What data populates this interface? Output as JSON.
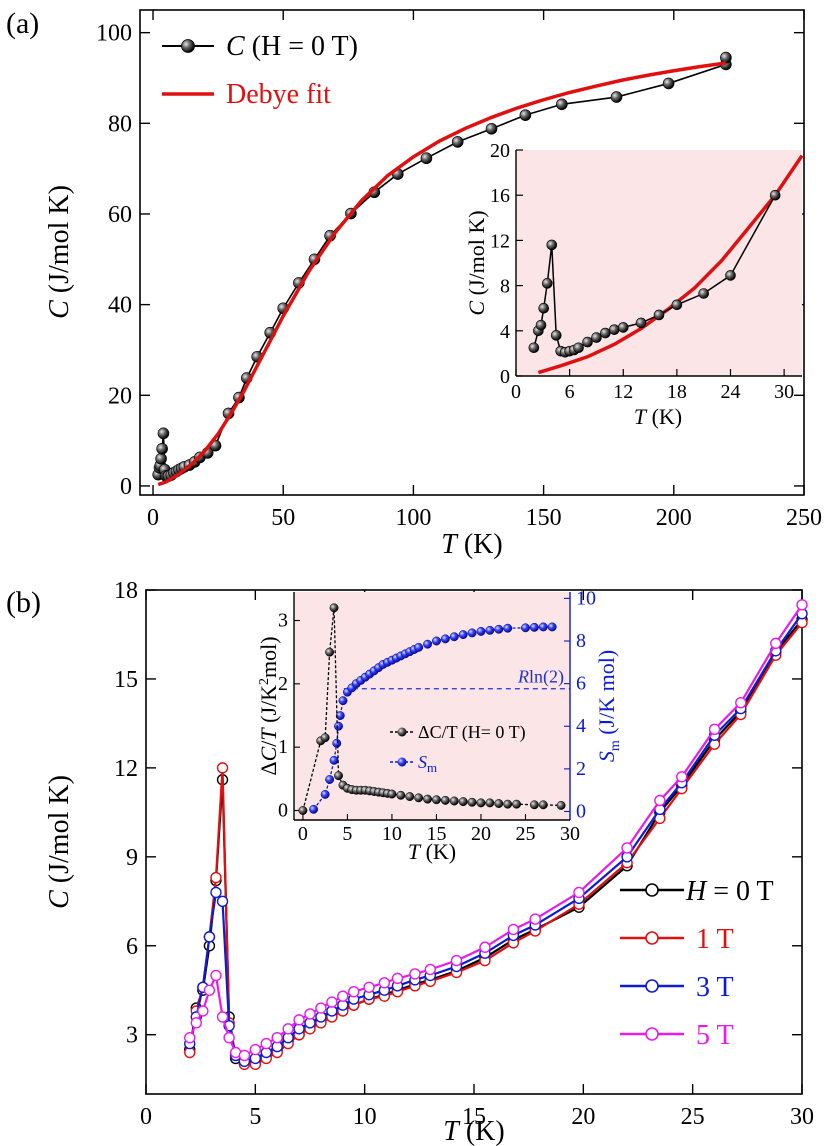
{
  "panels": {
    "a_label": "(a)",
    "b_label": "(b)"
  },
  "colors": {
    "black": "#000000",
    "red": "#e01010",
    "blue": "#0b1bd6",
    "magenta": "#e81be8",
    "inset_bg": "#fbe5e7",
    "dashed": "#2030d0"
  },
  "chart_data": [
    {
      "id": "panel-a-main",
      "type": "scatter",
      "xlabel_italic": "T",
      "xlabel_rest": " (K)",
      "ylabel_italic": "C",
      "ylabel_rest": " (J/mol K)",
      "xlim": [
        -5,
        250
      ],
      "ylim": [
        -2,
        105
      ],
      "xticks": [
        0,
        50,
        100,
        150,
        200,
        250
      ],
      "yticks": [
        0,
        20,
        40,
        60,
        80,
        100
      ],
      "legend_position": "top-left",
      "legend": [
        {
          "label_italic": "C",
          "label_rest": " (H = 0 T)",
          "color": "#000000",
          "style": "line-marker"
        },
        {
          "label_italic": "",
          "label_rest": "Debye fit",
          "color": "#e01010",
          "style": "line"
        }
      ],
      "series": [
        {
          "name": "C (H = 0 T)",
          "color": "#000000",
          "x": [
            2,
            2.5,
            2.8,
            3.1,
            3.5,
            4,
            4.5,
            5,
            5.5,
            6,
            7,
            8,
            9,
            10,
            11,
            12,
            14,
            16,
            18,
            21,
            24,
            29,
            33,
            36,
            40,
            45,
            50,
            56,
            62,
            68,
            76,
            85,
            94,
            105,
            117,
            130,
            143,
            157,
            178,
            198,
            220,
            220
          ],
          "y": [
            2.5,
            4.0,
            4.5,
            6.0,
            8.2,
            11.6,
            3.6,
            2.2,
            2.1,
            2.2,
            2.4,
            2.9,
            3.2,
            3.6,
            3.9,
            4.2,
            4.6,
            5.3,
            6.3,
            7.3,
            8.9,
            16.0,
            19.5,
            23.8,
            28.5,
            33.8,
            39.2,
            44.8,
            50.0,
            55.2,
            60.1,
            64.8,
            68.8,
            72.3,
            75.9,
            78.8,
            81.8,
            84.2,
            85.8,
            88.8,
            93.0,
            94.5
          ]
        },
        {
          "name": "Debye fit",
          "color": "#e01010",
          "x": [
            2,
            5,
            10,
            15,
            20,
            25,
            30,
            35,
            40,
            45,
            50,
            60,
            70,
            80,
            90,
            100,
            110,
            120,
            130,
            140,
            150,
            160,
            170,
            180,
            190,
            200,
            210,
            220
          ],
          "y": [
            0.3,
            0.9,
            2.6,
            4.9,
            7.8,
            11.5,
            16.0,
            21.0,
            26.5,
            32.0,
            37.5,
            47.5,
            55.9,
            62.9,
            68.4,
            72.6,
            76.1,
            78.9,
            81.3,
            83.4,
            85.2,
            86.8,
            88.2,
            89.5,
            90.6,
            91.6,
            92.5,
            93.3
          ]
        }
      ]
    },
    {
      "id": "panel-a-inset",
      "type": "scatter",
      "xlabel_italic": "T",
      "xlabel_rest": " (K)",
      "ylabel_italic": "C",
      "ylabel_rest": " (J/mol K)",
      "xlim": [
        0,
        32
      ],
      "ylim": [
        0,
        20
      ],
      "xticks": [
        0,
        6,
        12,
        18,
        24,
        30
      ],
      "yticks": [
        0,
        4,
        8,
        12,
        16,
        20
      ],
      "series": [
        {
          "name": "C (H = 0 T)",
          "color": "#000000",
          "x": [
            2,
            2.5,
            2.8,
            3.1,
            3.5,
            4,
            4.5,
            5,
            5.5,
            6,
            6.5,
            7,
            8,
            9,
            10,
            11,
            12,
            14,
            16,
            18,
            21,
            24,
            29
          ],
          "y": [
            2.5,
            4.0,
            4.5,
            6.0,
            8.2,
            11.6,
            3.6,
            2.2,
            2.1,
            2.2,
            2.3,
            2.5,
            3.0,
            3.4,
            3.8,
            4.1,
            4.3,
            4.7,
            5.4,
            6.3,
            7.3,
            8.9,
            16.0
          ]
        },
        {
          "name": "Debye fit",
          "color": "#e01010",
          "x": [
            2.5,
            5,
            8,
            11,
            14,
            17,
            20,
            23,
            26,
            29,
            32
          ],
          "y": [
            0.3,
            0.9,
            1.7,
            2.8,
            4.2,
            5.9,
            7.8,
            10.2,
            13.1,
            16.0,
            19.5
          ]
        }
      ]
    },
    {
      "id": "panel-b-main",
      "type": "line",
      "xlabel_italic": "T",
      "xlabel_rest": " (K)",
      "ylabel_italic": "C",
      "ylabel_rest": " (J/mol K)",
      "xlim": [
        0,
        30
      ],
      "ylim": [
        1,
        18
      ],
      "xticks": [
        0,
        5,
        10,
        15,
        20,
        25,
        30
      ],
      "yticks": [
        3,
        6,
        9,
        12,
        15,
        18
      ],
      "legend_position": "right",
      "legend": [
        {
          "label_italic": "H",
          "label_rest": " = 0 T",
          "color": "#000000"
        },
        {
          "label_italic": "",
          "label_rest": "1 T",
          "color": "#e01010"
        },
        {
          "label_italic": "",
          "label_rest": "3 T",
          "color": "#0b1bd6"
        },
        {
          "label_italic": "",
          "label_rest": "5 T",
          "color": "#e81be8"
        }
      ],
      "series": [
        {
          "name": "H = 0 T",
          "color": "#000000",
          "x": [
            2.0,
            2.3,
            2.6,
            2.9,
            3.2,
            3.5,
            3.8,
            4.1,
            4.5,
            5.0,
            5.5,
            6.0,
            6.5,
            7.0,
            7.5,
            8.0,
            8.5,
            9.0,
            9.5,
            10.2,
            10.9,
            11.5,
            12.3,
            13.0,
            14.2,
            15.5,
            16.8,
            17.8,
            19.8,
            22.0,
            23.5,
            24.5,
            26.0,
            27.2,
            28.8,
            30.0
          ],
          "y": [
            2.5,
            3.9,
            4.5,
            6.0,
            8.2,
            11.6,
            3.6,
            2.2,
            2.1,
            2.1,
            2.3,
            2.5,
            2.8,
            3.0,
            3.3,
            3.5,
            3.7,
            3.9,
            4.0,
            4.2,
            4.35,
            4.5,
            4.7,
            4.85,
            5.15,
            5.6,
            6.2,
            6.55,
            7.3,
            8.7,
            10.5,
            11.4,
            12.95,
            13.9,
            15.9,
            17.0
          ]
        },
        {
          "name": "1 T",
          "color": "#e01010",
          "x": [
            2.0,
            2.3,
            2.6,
            2.9,
            3.2,
            3.5,
            3.8,
            4.1,
            4.5,
            5.0,
            5.5,
            6.0,
            6.5,
            7.0,
            7.5,
            8.0,
            8.5,
            9.0,
            9.5,
            10.2,
            10.9,
            11.5,
            12.3,
            13.0,
            14.2,
            15.5,
            16.8,
            17.8,
            19.8,
            22.0,
            23.5,
            24.5,
            26.0,
            27.2,
            28.8,
            30.0
          ],
          "y": [
            2.4,
            3.8,
            4.6,
            6.3,
            8.3,
            12.0,
            3.4,
            2.3,
            2.0,
            2.0,
            2.2,
            2.4,
            2.7,
            3.0,
            3.2,
            3.4,
            3.6,
            3.8,
            4.0,
            4.2,
            4.3,
            4.45,
            4.65,
            4.8,
            5.1,
            5.5,
            6.1,
            6.5,
            7.4,
            8.8,
            10.3,
            11.3,
            12.8,
            13.8,
            15.8,
            16.9
          ]
        },
        {
          "name": "3 T",
          "color": "#0b1bd6",
          "x": [
            2.0,
            2.3,
            2.6,
            2.9,
            3.2,
            3.5,
            3.8,
            4.1,
            4.5,
            5.0,
            5.5,
            6.0,
            6.5,
            7.0,
            7.5,
            8.0,
            8.5,
            9.0,
            9.5,
            10.2,
            10.9,
            11.5,
            12.3,
            13.0,
            14.2,
            15.5,
            16.8,
            17.8,
            19.8,
            22.0,
            23.5,
            24.5,
            26.0,
            27.2,
            28.8,
            30.0
          ],
          "y": [
            2.7,
            3.6,
            4.6,
            6.3,
            7.8,
            7.5,
            3.3,
            2.3,
            2.1,
            2.2,
            2.4,
            2.6,
            2.9,
            3.2,
            3.4,
            3.6,
            3.8,
            4.0,
            4.2,
            4.35,
            4.5,
            4.65,
            4.85,
            5.0,
            5.3,
            5.75,
            6.35,
            6.7,
            7.6,
            9.0,
            10.6,
            11.5,
            13.1,
            14.0,
            15.95,
            17.2
          ]
        },
        {
          "name": "5 T",
          "color": "#e81be8",
          "x": [
            2.0,
            2.3,
            2.6,
            2.9,
            3.2,
            3.5,
            3.8,
            4.1,
            4.5,
            5.0,
            5.5,
            6.0,
            6.5,
            7.0,
            7.5,
            8.0,
            8.5,
            9.0,
            9.5,
            10.2,
            10.9,
            11.5,
            12.3,
            13.0,
            14.2,
            15.5,
            16.8,
            17.8,
            19.8,
            22.0,
            23.5,
            24.5,
            26.0,
            27.2,
            28.8,
            30.0
          ],
          "y": [
            2.9,
            3.4,
            3.8,
            4.5,
            5.0,
            3.6,
            2.9,
            2.4,
            2.3,
            2.5,
            2.7,
            2.9,
            3.2,
            3.5,
            3.7,
            3.9,
            4.1,
            4.3,
            4.45,
            4.6,
            4.75,
            4.9,
            5.05,
            5.2,
            5.5,
            5.95,
            6.55,
            6.9,
            7.8,
            9.3,
            10.9,
            11.7,
            13.3,
            14.2,
            16.2,
            17.5
          ]
        }
      ]
    },
    {
      "id": "panel-b-inset",
      "type": "line",
      "xlabel_italic": "T",
      "xlabel_rest": " (K)",
      "ylabel_left": "ΔC/T (J/K²mol)",
      "ylabel_right": "S_m (J/K mol)",
      "xlim": [
        -1,
        30
      ],
      "ylim_left": [
        -0.15,
        3.45
      ],
      "ylim_right": [
        -0.4,
        10.3
      ],
      "xticks": [
        0,
        5,
        10,
        15,
        20,
        25,
        30
      ],
      "yticks_left": [
        0,
        1,
        2,
        3
      ],
      "yticks_right": [
        0,
        2,
        4,
        6,
        8,
        10
      ],
      "annotation": "Rln(2)",
      "annotation_value": 5.76,
      "legend": [
        {
          "label": "ΔC/T (H= 0 T)",
          "color": "#000000"
        },
        {
          "label": "S_m",
          "color": "#0b1bd6"
        }
      ],
      "series": [
        {
          "name": "ΔC/T (H= 0 T)",
          "axis": "left",
          "color": "#000000",
          "x": [
            0,
            2,
            2.5,
            3,
            3.5,
            4,
            4.5,
            5,
            5.5,
            6,
            6.5,
            7,
            7.5,
            8,
            8.5,
            9,
            9.5,
            10,
            11,
            12,
            13,
            14,
            15,
            16,
            17,
            18,
            19,
            20,
            21,
            22,
            23,
            24,
            26,
            27,
            29
          ],
          "y": [
            0,
            1.1,
            1.15,
            2.5,
            3.2,
            0.55,
            0.4,
            0.35,
            0.33,
            0.32,
            0.32,
            0.32,
            0.31,
            0.3,
            0.29,
            0.28,
            0.27,
            0.26,
            0.24,
            0.22,
            0.2,
            0.18,
            0.17,
            0.16,
            0.15,
            0.14,
            0.13,
            0.12,
            0.12,
            0.11,
            0.1,
            0.1,
            0.09,
            0.09,
            0.08
          ]
        },
        {
          "name": "S_m",
          "axis": "right",
          "color": "#0b1bd6",
          "x": [
            1.2,
            2.5,
            3.0,
            3.5,
            3.8,
            4.0,
            4.2,
            4.5,
            5,
            5.5,
            6,
            6.5,
            7,
            7.5,
            8,
            8.5,
            9,
            9.5,
            10,
            10.5,
            11,
            11.5,
            12,
            12.5,
            13,
            14,
            15,
            16,
            17,
            18,
            19,
            20,
            21,
            22,
            23,
            25,
            26,
            27,
            28
          ],
          "y": [
            0.1,
            0.8,
            1.5,
            2.4,
            3.2,
            4.0,
            4.5,
            5.2,
            5.6,
            5.8,
            6.0,
            6.15,
            6.3,
            6.45,
            6.6,
            6.75,
            6.9,
            7.0,
            7.1,
            7.2,
            7.3,
            7.4,
            7.5,
            7.6,
            7.7,
            7.85,
            8.0,
            8.1,
            8.2,
            8.3,
            8.38,
            8.45,
            8.5,
            8.55,
            8.6,
            8.62,
            8.64,
            8.66,
            8.66
          ]
        }
      ]
    }
  ]
}
